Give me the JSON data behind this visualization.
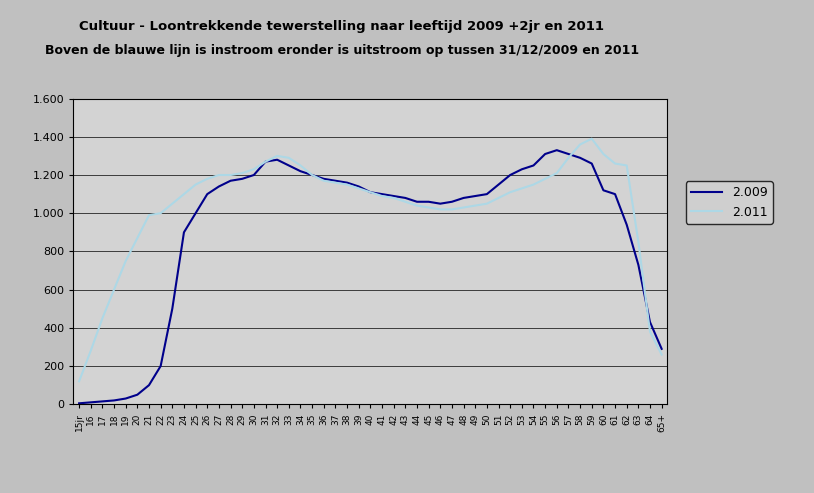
{
  "title1": "Cultuur - Loontrekkende tewerstelling naar leeftijd 2009 +2jr en 2011",
  "title2": "Boven de blauwe lijn is instroom eronder is uitstroom op tussen 31/12/2009 en 2011",
  "background_color": "#c0c0c0",
  "plot_bg_color": "#d3d3d3",
  "ylim": [
    0,
    1600
  ],
  "yticks": [
    0,
    200,
    400,
    600,
    800,
    1000,
    1200,
    1400,
    1600
  ],
  "ytick_labels": [
    "0",
    "200",
    "400",
    "600",
    "800",
    "1.000",
    "1.200",
    "1.400",
    "1.600"
  ],
  "legend_labels": [
    "2.009",
    "2.011"
  ],
  "line1_color": "#00008B",
  "line2_color": "#ADD8E6",
  "x_labels": [
    "15jr",
    "16",
    "17",
    "18",
    "19",
    "20",
    "21",
    "22",
    "23",
    "24",
    "25",
    "26",
    "27",
    "28",
    "29",
    "30",
    "31",
    "32",
    "33",
    "34",
    "35",
    "36",
    "37",
    "38",
    "39",
    "40",
    "41",
    "42",
    "43",
    "44",
    "45",
    "46",
    "47",
    "48",
    "49",
    "50",
    "51",
    "52",
    "53",
    "54",
    "55",
    "56",
    "57",
    "58",
    "59",
    "60",
    "61",
    "62",
    "63",
    "64",
    "65+"
  ],
  "line1_values": [
    5,
    10,
    15,
    20,
    30,
    50,
    100,
    200,
    500,
    900,
    1000,
    1100,
    1140,
    1170,
    1180,
    1200,
    1270,
    1280,
    1250,
    1220,
    1200,
    1180,
    1170,
    1160,
    1140,
    1110,
    1100,
    1090,
    1080,
    1060,
    1060,
    1050,
    1060,
    1080,
    1090,
    1100,
    1150,
    1200,
    1230,
    1250,
    1310,
    1330,
    1310,
    1290,
    1260,
    1120,
    1100,
    940,
    730,
    430,
    290
  ],
  "line2_values": [
    120,
    280,
    450,
    600,
    750,
    870,
    990,
    1000,
    1050,
    1100,
    1150,
    1180,
    1200,
    1200,
    1210,
    1230,
    1270,
    1300,
    1290,
    1250,
    1200,
    1170,
    1160,
    1150,
    1130,
    1110,
    1090,
    1080,
    1060,
    1040,
    1030,
    1020,
    1020,
    1030,
    1040,
    1050,
    1080,
    1110,
    1130,
    1150,
    1180,
    1210,
    1290,
    1360,
    1390,
    1310,
    1260,
    1250,
    850,
    380,
    260
  ]
}
